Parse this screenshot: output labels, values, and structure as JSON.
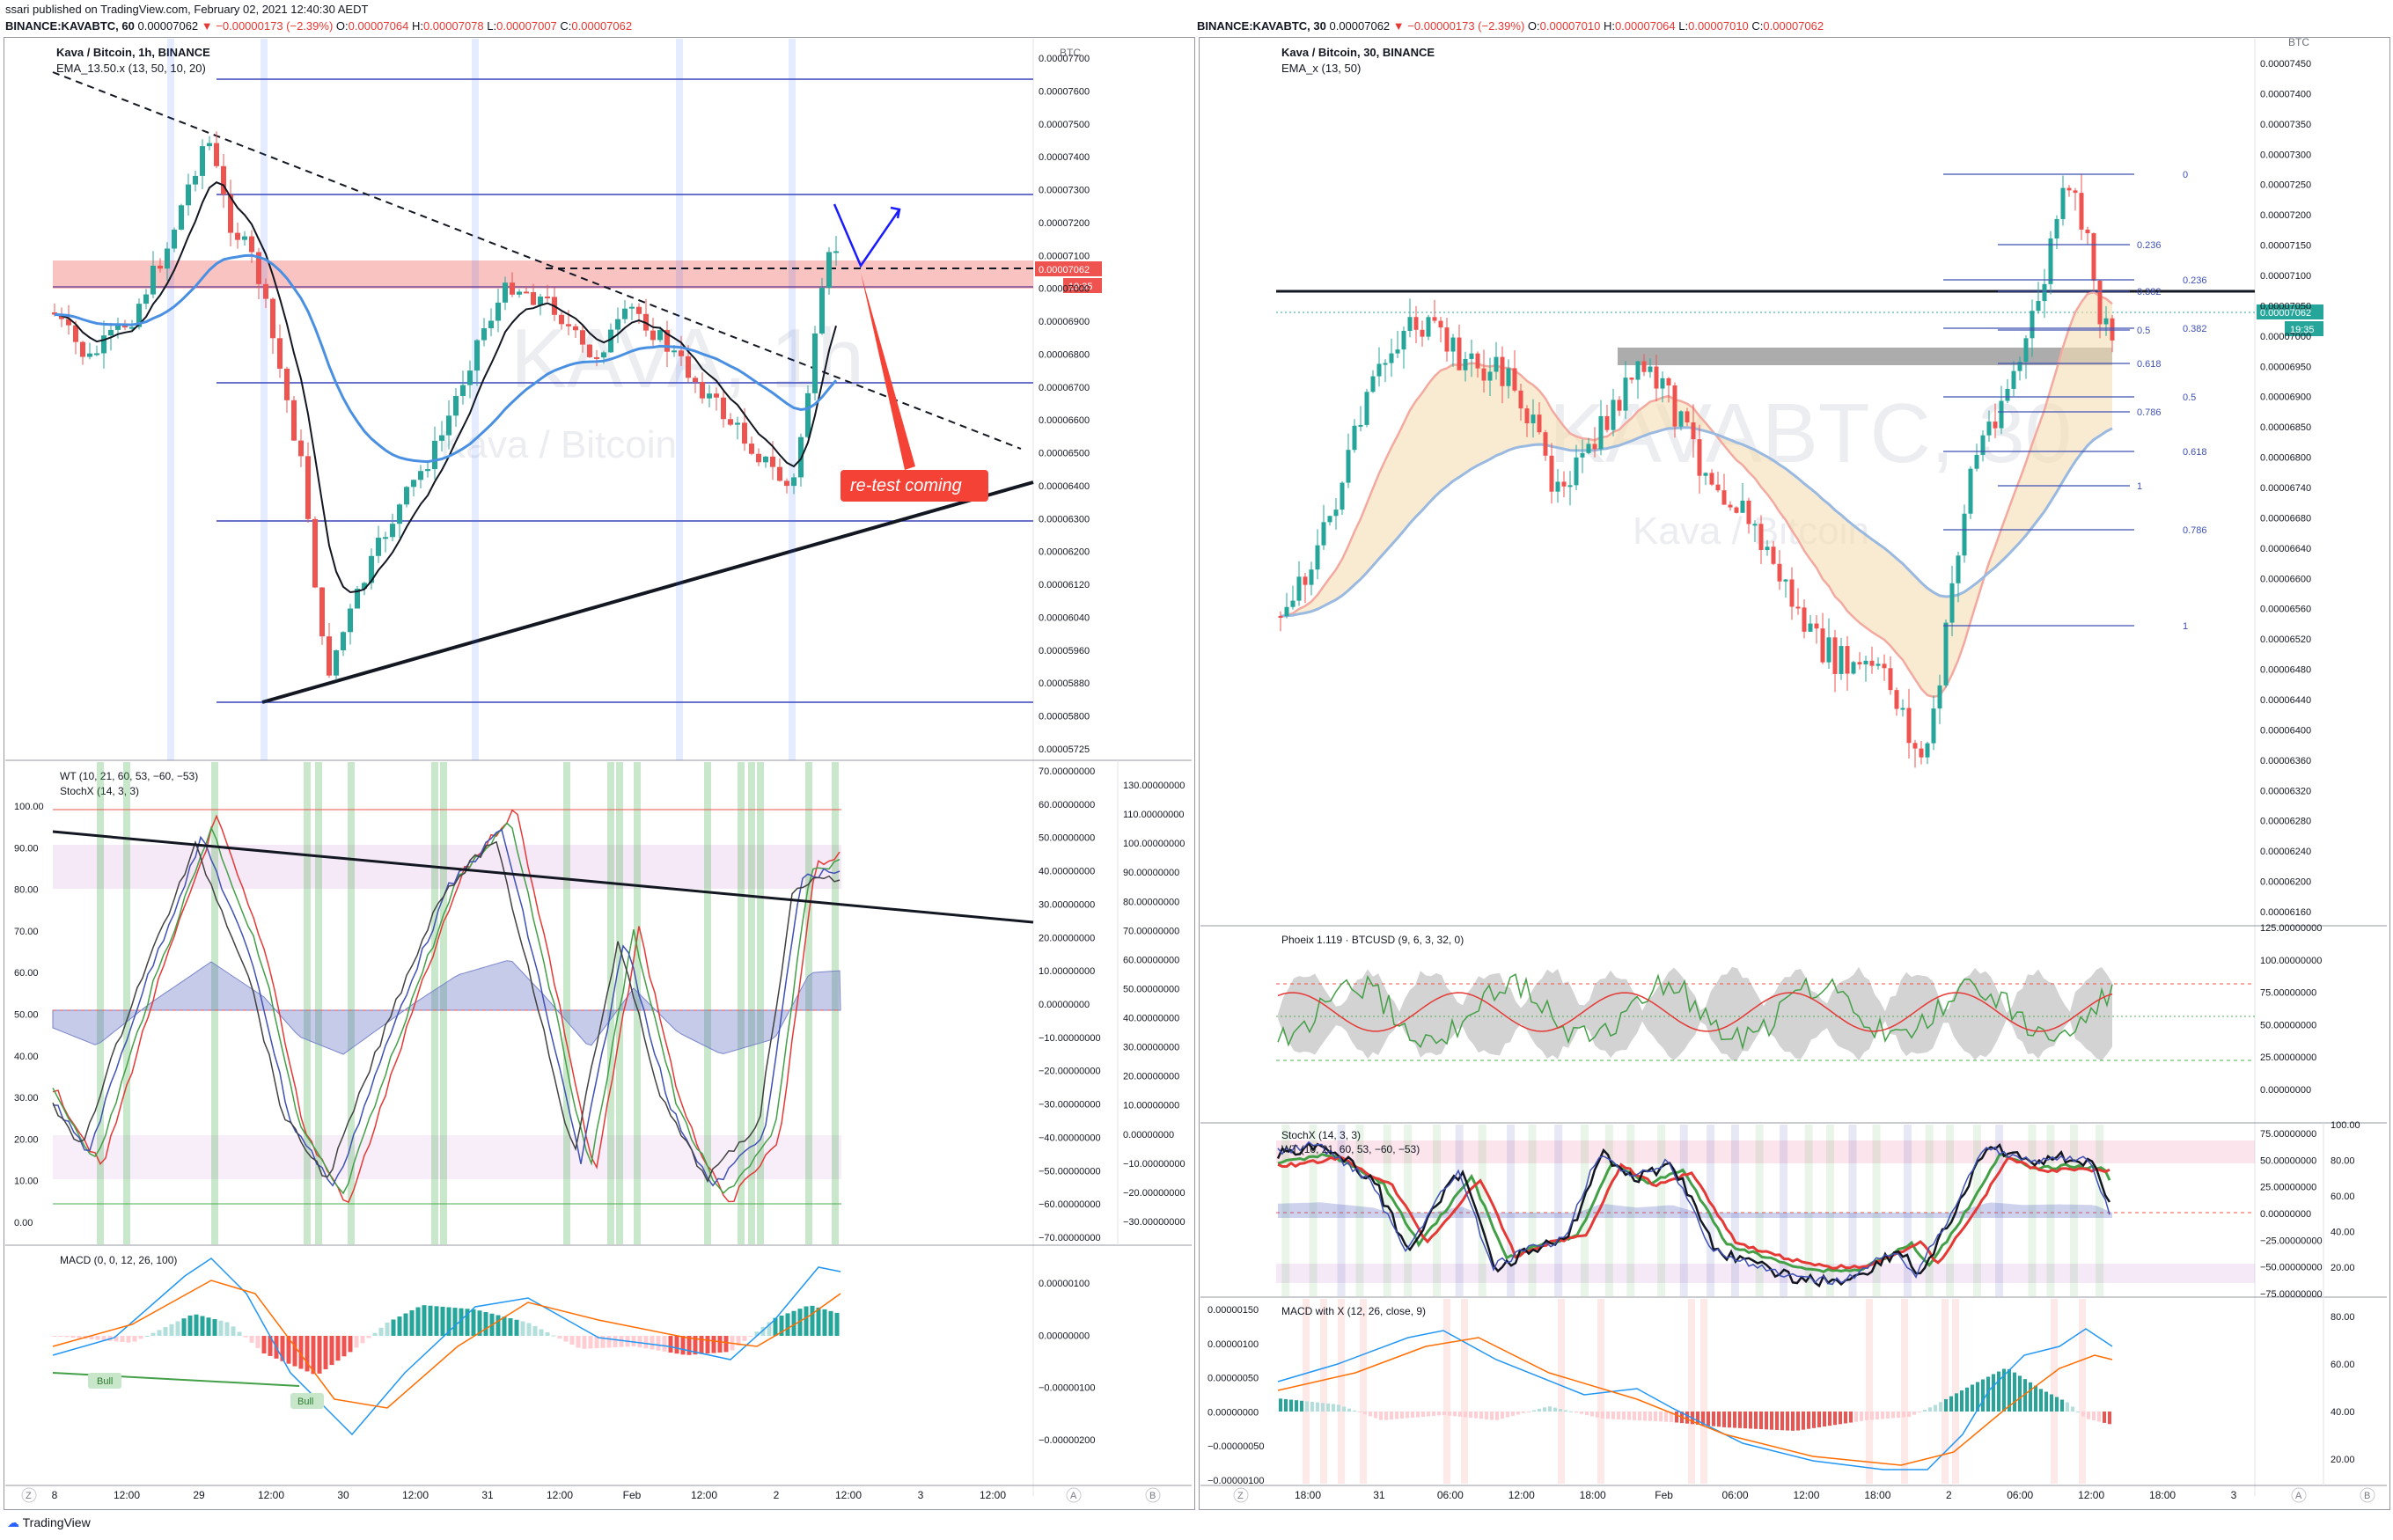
{
  "header": {
    "publisher": "ssari published on TradingView.com, February 02, 2021 12:40:30 AEDT",
    "left_symbol": "BINANCE:KAVABTC, 60",
    "left_quote": "0.00007062",
    "left_change": "▼ −0.00000173 (−2.39%)",
    "left_ohlc_o": "O:",
    "left_o": "0.00007064",
    "left_h_label": "H:",
    "left_h": "0.00007078",
    "left_l_label": "L:",
    "left_l": "0.00007007",
    "left_c_label": "C:",
    "left_c": "0.00007062",
    "right_symbol": "BINANCE:KAVABTC, 30",
    "right_quote": "0.00007062",
    "right_change": "▼ −0.00000173 (−2.39%)",
    "right_o": "0.00007010",
    "right_h": "0.00007064",
    "right_l": "0.00007010",
    "right_c": "0.00007062"
  },
  "left_chart": {
    "title": "Kava / Bitcoin, 1h, BINANCE",
    "indicator": "EMA_13.50.x (13, 50, 10, 20)",
    "watermark": "KAVA, 1h",
    "watermark2": "Kava / Bitcoin",
    "currency": "BTC",
    "price_tag": "0.00007062",
    "countdown": "19:35",
    "annotation": "re-test coming",
    "price_ticks": [
      "0.00007700",
      "0.00007600",
      "0.00007500",
      "0.00007400",
      "0.00007300",
      "0.00007200",
      "0.00007100",
      "0.00007000",
      "0.00006900",
      "0.00006800",
      "0.00006700",
      "0.00006600",
      "0.00006500",
      "0.00006400",
      "0.00006300",
      "0.00006200",
      "0.00006120",
      "0.00006040",
      "0.00005960",
      "0.00005880",
      "0.00005800",
      "0.00005725"
    ],
    "wt_label": "WT (10, 21, 60, 53, −60, −53)",
    "stoch_label": "StochX (14, 3, 3)",
    "osc_left_ticks": [
      "100.00",
      "90.00",
      "80.00",
      "70.00",
      "60.00",
      "50.00",
      "40.00",
      "30.00",
      "20.00",
      "10.00",
      "0.00"
    ],
    "osc_mid_ticks": [
      "70.00000000",
      "60.00000000",
      "50.00000000",
      "40.00000000",
      "30.00000000",
      "20.00000000",
      "10.00000000",
      "0.00000000",
      "−10.00000000",
      "−20.00000000",
      "−30.00000000",
      "−40.00000000",
      "−50.00000000",
      "−60.00000000",
      "−70.00000000"
    ],
    "osc_right_ticks": [
      "130.00000000",
      "110.00000000",
      "100.00000000",
      "90.00000000",
      "80.00000000",
      "70.00000000",
      "60.00000000",
      "50.00000000",
      "40.00000000",
      "30.00000000",
      "20.00000000",
      "10.00000000",
      "0.00000000",
      "−10.00000000",
      "−20.00000000",
      "−30.00000000"
    ],
    "macd_label": "MACD (0, 0, 12, 26, 100)",
    "macd_ticks": [
      "0.00000100",
      "0.00000000",
      "−0.00000100",
      "−0.00000200"
    ],
    "bull_label": "Bull",
    "time_ticks": [
      "8",
      "12:00",
      "29",
      "12:00",
      "30",
      "12:00",
      "31",
      "12:00",
      "Feb",
      "12:00",
      "2",
      "12:00",
      "3",
      "12:00"
    ]
  },
  "right_chart": {
    "title": "Kava / Bitcoin, 30, BINANCE",
    "indicator": "EMA_x (13, 50)",
    "watermark": "KAVABTC, 30",
    "watermark2": "Kava / Bitcoin",
    "currency": "BTC",
    "price_tag": "0.00007062",
    "countdown": "19:35",
    "price_ticks": [
      "0.00007450",
      "0.00007400",
      "0.00007350",
      "0.00007300",
      "0.00007250",
      "0.00007200",
      "0.00007150",
      "0.00007100",
      "0.00007050",
      "0.00007000",
      "0.00006950",
      "0.00006900",
      "0.00006850",
      "0.00006800",
      "0.00006740",
      "0.00006680",
      "0.00006640",
      "0.00006600",
      "0.00006560",
      "0.00006520",
      "0.00006480",
      "0.00006440",
      "0.00006400",
      "0.00006360",
      "0.00006320",
      "0.00006280",
      "0.00006240",
      "0.00006200",
      "0.00006160"
    ],
    "fib_a": [
      "0",
      "0.236",
      "0.382",
      "0.5",
      "0.618",
      "0.786",
      "1"
    ],
    "fib_b": [
      "0.236",
      "0.382",
      "0.5",
      "0.618",
      "0.786",
      "1"
    ],
    "phoeix_label": "Phoeix 1.119 · BTCUSD (9, 6, 3, 32, 0)",
    "phoeix_ticks": [
      "125.00000000",
      "100.00000000",
      "75.00000000",
      "50.00000000",
      "25.00000000",
      "0.00000000"
    ],
    "stoch_label": "StochX (14, 3, 3)",
    "wt_label": "WT (10, 21, 60, 53, −60, −53)",
    "stoch_ticks_mid": [
      "75.00000000",
      "50.00000000",
      "25.00000000",
      "0.00000000",
      "−25.00000000",
      "−50.00000000",
      "−75.00000000"
    ],
    "stoch_ticks_right": [
      "100.00",
      "80.00",
      "60.00",
      "40.00",
      "20.00"
    ],
    "macd_label": "MACD with X (12, 26, close, 9)",
    "macd_ticks_left": [
      "0.00000150",
      "0.00000100",
      "0.00000050",
      "0.00000000",
      "−0.00000050",
      "−0.00000100"
    ],
    "macd_ticks_right": [
      "80.00",
      "60.00",
      "40.00",
      "20.00"
    ],
    "time_ticks": [
      "18:00",
      "31",
      "06:00",
      "12:00",
      "18:00",
      "Feb",
      "06:00",
      "12:00",
      "18:00",
      "2",
      "06:00",
      "12:00",
      "18:00",
      "3"
    ]
  },
  "footer": {
    "brand": "TradingView"
  },
  "colors": {
    "up": "#26a69a",
    "down": "#ef5350",
    "accent": "#2962ff",
    "fib": "#3f51b5"
  }
}
